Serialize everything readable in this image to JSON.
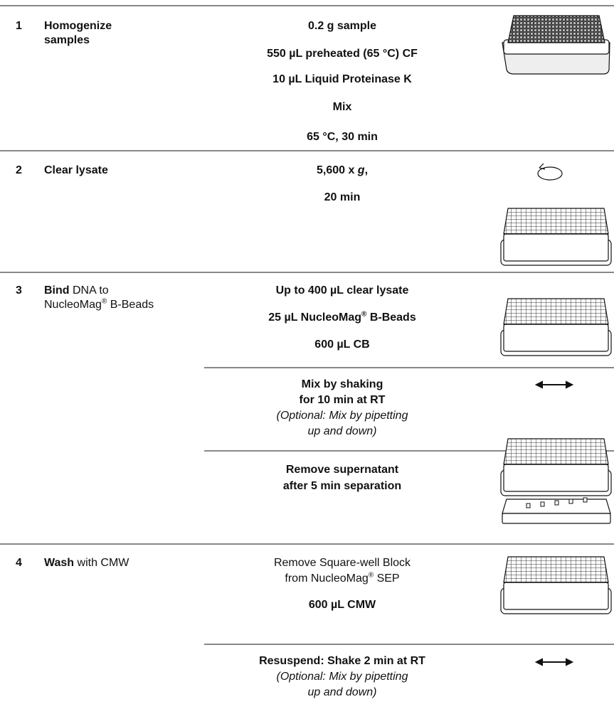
{
  "steps": [
    {
      "number": "1",
      "label": [
        "Homogenize",
        "samples"
      ],
      "blocks": [
        {
          "lines": [
            "0.2 g sample",
            "550 µL preheated (65 °C) CF",
            "10 µL Liquid Proteinase K",
            "Mix",
            "65 °C, 30 min"
          ]
        }
      ]
    },
    {
      "number": "2",
      "label": [
        "Clear lysate"
      ],
      "blocks": [
        {
          "lines": [
            [
              "5,600 x ",
              "g",
              ","
            ],
            "20 min"
          ]
        }
      ]
    },
    {
      "number": "3",
      "label": [
        "Bind",
        " DNA to",
        "NucleoMag",
        "®",
        " B-Beads"
      ],
      "blocks": [
        {
          "lines": [
            "Up to 400 µL clear lysate",
            [
              "25 µL NucleoMag",
              "®",
              " B-Beads"
            ],
            "600 µL CB"
          ]
        },
        {
          "lines": [
            "Mix by shaking",
            "for 10 min at RT"
          ],
          "notes": [
            "(Optional: Mix by pipetting",
            "up and down)"
          ]
        },
        {
          "lines": [
            "Remove supernatant",
            "after 5 min separation"
          ]
        }
      ]
    },
    {
      "number": "4",
      "label": [
        "Wash",
        " with CMW"
      ],
      "blocks": [
        {
          "lines": [
            "Remove Square-well Block",
            [
              "from NucleoMag",
              "®",
              " SEP"
            ],
            "600 µL CMW"
          ]
        },
        {
          "lines": [
            "Resuspend: Shake 2 min at RT"
          ],
          "notes": [
            "(Optional: Mix by pipetting",
            "up and down)"
          ]
        }
      ]
    }
  ]
}
